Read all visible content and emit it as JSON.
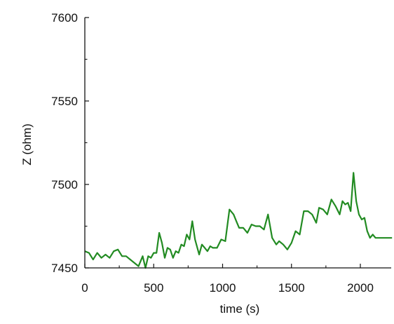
{
  "chart_data": {
    "type": "line",
    "title": "",
    "xlabel": "time (s)",
    "ylabel": "Z (ohm)",
    "xlim": [
      0,
      2250
    ],
    "ylim": [
      7450,
      7600
    ],
    "x_ticks": [
      "0",
      "500",
      "1000",
      "1500",
      "2000"
    ],
    "y_ticks": [
      "7450",
      "7500",
      "7550",
      "7600"
    ],
    "grid": false,
    "legend": "none",
    "series": [
      {
        "color": "#228B22",
        "x": [
          0,
          30,
          60,
          90,
          120,
          150,
          180,
          210,
          240,
          270,
          300,
          330,
          360,
          390,
          420,
          440,
          460,
          480,
          500,
          520,
          540,
          560,
          580,
          600,
          620,
          640,
          660,
          680,
          700,
          720,
          740,
          760,
          780,
          800,
          830,
          850,
          870,
          890,
          910,
          930,
          960,
          990,
          1020,
          1050,
          1080,
          1100,
          1120,
          1150,
          1180,
          1210,
          1240,
          1270,
          1300,
          1330,
          1360,
          1390,
          1410,
          1440,
          1470,
          1500,
          1530,
          1560,
          1590,
          1620,
          1650,
          1680,
          1700,
          1730,
          1760,
          1790,
          1820,
          1850,
          1870,
          1890,
          1910,
          1930,
          1950,
          1970,
          1990,
          2010,
          2030,
          2050,
          2070,
          2090,
          2110,
          2140,
          2170,
          2200,
          2230
        ],
        "y": [
          7460,
          7459,
          7455,
          7459,
          7456,
          7458,
          7456,
          7460,
          7461,
          7457,
          7457,
          7455,
          7453,
          7451,
          7457,
          7450,
          7457,
          7456,
          7459,
          7459,
          7471,
          7465,
          7456,
          7462,
          7461,
          7456,
          7460,
          7459,
          7464,
          7463,
          7470,
          7467,
          7478,
          7467,
          7458,
          7464,
          7462,
          7460,
          7463,
          7462,
          7462,
          7467,
          7466,
          7485,
          7482,
          7478,
          7474,
          7474,
          7471,
          7476,
          7475,
          7475,
          7473,
          7482,
          7468,
          7464,
          7466,
          7464,
          7461,
          7465,
          7472,
          7470,
          7484,
          7484,
          7482,
          7477,
          7486,
          7485,
          7482,
          7491,
          7487,
          7482,
          7490,
          7488,
          7489,
          7484,
          7507,
          7490,
          7482,
          7479,
          7480,
          7472,
          7468,
          7470,
          7468,
          7468,
          7468,
          7468,
          7468
        ]
      }
    ]
  }
}
